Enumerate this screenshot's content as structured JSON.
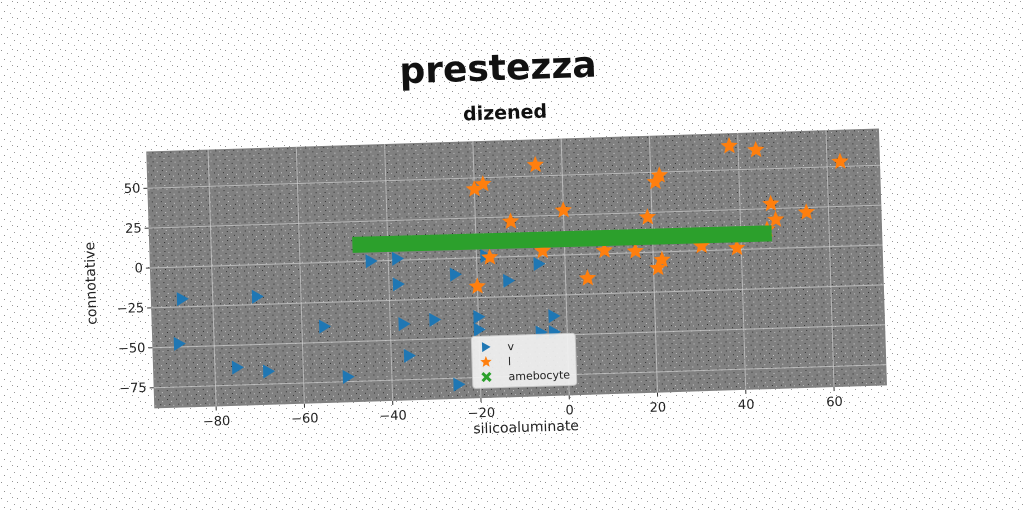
{
  "title": "prestezza",
  "subtitle": "dizened",
  "chart_data": {
    "type": "scatter",
    "xlabel": "silicoaluminate",
    "ylabel": "connotative",
    "xlim": [
      -94,
      72
    ],
    "ylim": [
      -88,
      73
    ],
    "xticks": [
      -80,
      -60,
      -40,
      -20,
      0,
      20,
      40,
      60
    ],
    "yticks": [
      -75,
      -50,
      -25,
      0,
      25,
      50
    ],
    "grid": true,
    "legend_position": "bottom-center",
    "background_color": "#808080",
    "series": [
      {
        "name": "v",
        "marker": "triangle-right",
        "color": "#1f77b4",
        "points": [
          [
            -87,
            -20
          ],
          [
            -70,
            -20
          ],
          [
            -88,
            -48
          ],
          [
            -75,
            -64
          ],
          [
            -68,
            -67
          ],
          [
            -55,
            -40
          ],
          [
            -50,
            -72
          ],
          [
            -44,
            0
          ],
          [
            -38,
            1
          ],
          [
            -38,
            -15
          ],
          [
            -37,
            -40
          ],
          [
            -36,
            -60
          ],
          [
            -30,
            -38
          ],
          [
            -25,
            -79
          ],
          [
            -25,
            -10
          ],
          [
            -20,
            -37
          ],
          [
            -20,
            -45
          ],
          [
            -18,
            1
          ],
          [
            -13,
            -15
          ],
          [
            -6,
            -5
          ],
          [
            -6,
            -48
          ],
          [
            -3,
            -38
          ],
          [
            -3,
            -48
          ]
        ]
      },
      {
        "name": "l",
        "marker": "star",
        "color": "#ff7f0e",
        "points": [
          [
            -20,
            43
          ],
          [
            -18,
            46
          ],
          [
            -6,
            57
          ],
          [
            -20,
            -18
          ],
          [
            -17,
            0
          ],
          [
            -12,
            22
          ],
          [
            -5,
            3
          ],
          [
            0,
            28
          ],
          [
            5,
            -15
          ],
          [
            9,
            2
          ],
          [
            16,
            1
          ],
          [
            19,
            22
          ],
          [
            21,
            44
          ],
          [
            22,
            48
          ],
          [
            21,
            -10
          ],
          [
            22,
            -5
          ],
          [
            31,
            3
          ],
          [
            39,
            1
          ],
          [
            38,
            65
          ],
          [
            44,
            62
          ],
          [
            47,
            28
          ],
          [
            48,
            18
          ],
          [
            46,
            12
          ],
          [
            55,
            22
          ],
          [
            63,
            53
          ]
        ]
      },
      {
        "name": "amebocyte",
        "marker": "x",
        "color": "#2ca02c",
        "line": {
          "x_start": -48,
          "x_end": 47,
          "y_start": 13,
          "y_end": 12
        }
      }
    ]
  }
}
